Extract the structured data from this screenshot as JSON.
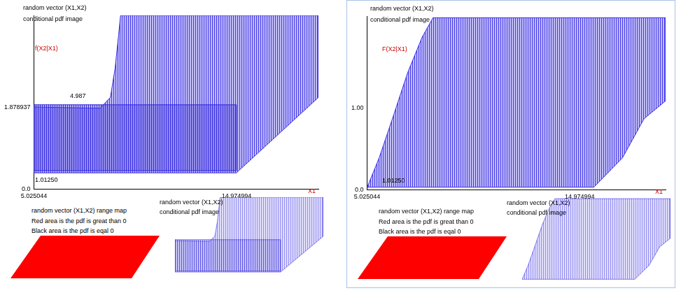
{
  "chart_data": [
    {
      "type": "area",
      "title": "random vector (X1,X2)",
      "subtitle": "conditional pdf image",
      "ylabel": "f(X2|X1)",
      "xlabel": "X1",
      "xlim": [
        5.025044,
        19.0
      ],
      "xticks": [
        5.025044,
        14.974994
      ],
      "ylim": [
        0,
        3.98
      ],
      "yticks": [
        {
          "value": 0,
          "label": "0.0"
        },
        1.878937
      ],
      "annotations": [
        "1.01250",
        "4.987"
      ],
      "grid": false,
      "series": [
        {
          "color": "#3a2ee6",
          "x": [
            5.03,
            5.03,
            8.27,
            8.78,
            9.01,
            9.18,
            9.28,
            19.0,
            19.0,
            14.97
          ],
          "values": [
            0.37,
            1.88,
            1.85,
            2.1,
            2.77,
            3.52,
            3.98,
            3.98,
            2.1,
            0.37
          ]
        },
        {
          "color": "#2a1fd0",
          "x": [
            5.03,
            14.97,
            14.97,
            5.03
          ],
          "values": [
            0.42,
            0.42,
            1.93,
            1.93
          ]
        }
      ],
      "range_map": {
        "title": "random vector (X1,X2) range map",
        "notes": [
          "Red area is the pdf is great than 0",
          "Black area is the pdf is eqal 0"
        ],
        "color": "#ff0000"
      },
      "thumbnail": {
        "title": "random vector (X1,X2)",
        "subtitle": "conditional pdf image"
      }
    },
    {
      "type": "area",
      "title": "random vector (X1,X2)",
      "subtitle": "conditional pdf image",
      "ylabel": "F(X2|X1)",
      "xlabel": "X1",
      "xlim": [
        5.025044,
        19.0
      ],
      "xticks": [
        5.025044,
        14.974994
      ],
      "ylim": [
        0,
        2.13
      ],
      "yticks": [
        {
          "value": 0,
          "label": "0.0"
        },
        {
          "value": 1,
          "label": "1.00"
        }
      ],
      "annotations": [
        "1.01250"
      ],
      "grid": false,
      "series": [
        {
          "color": "#3a2ee6",
          "x": [
            5.03,
            5.59,
            6.26,
            6.93,
            7.6,
            8.11,
            19.0,
            19.0,
            17.99,
            16.98,
            15.64
          ],
          "values": [
            0.03,
            0.39,
            0.91,
            1.44,
            1.87,
            2.11,
            2.11,
            1.09,
            0.87,
            0.39,
            0.03
          ]
        }
      ],
      "range_map": {
        "title": "random vector (X1,X2) range map",
        "notes": [
          "Red area is the pdf is great than 0",
          "Black area is the pdf is eqal 0"
        ],
        "color": "#ff0000"
      },
      "thumbnail": {
        "title": "random vector (X1,X2)",
        "subtitle": "conditional pdf image"
      }
    }
  ]
}
